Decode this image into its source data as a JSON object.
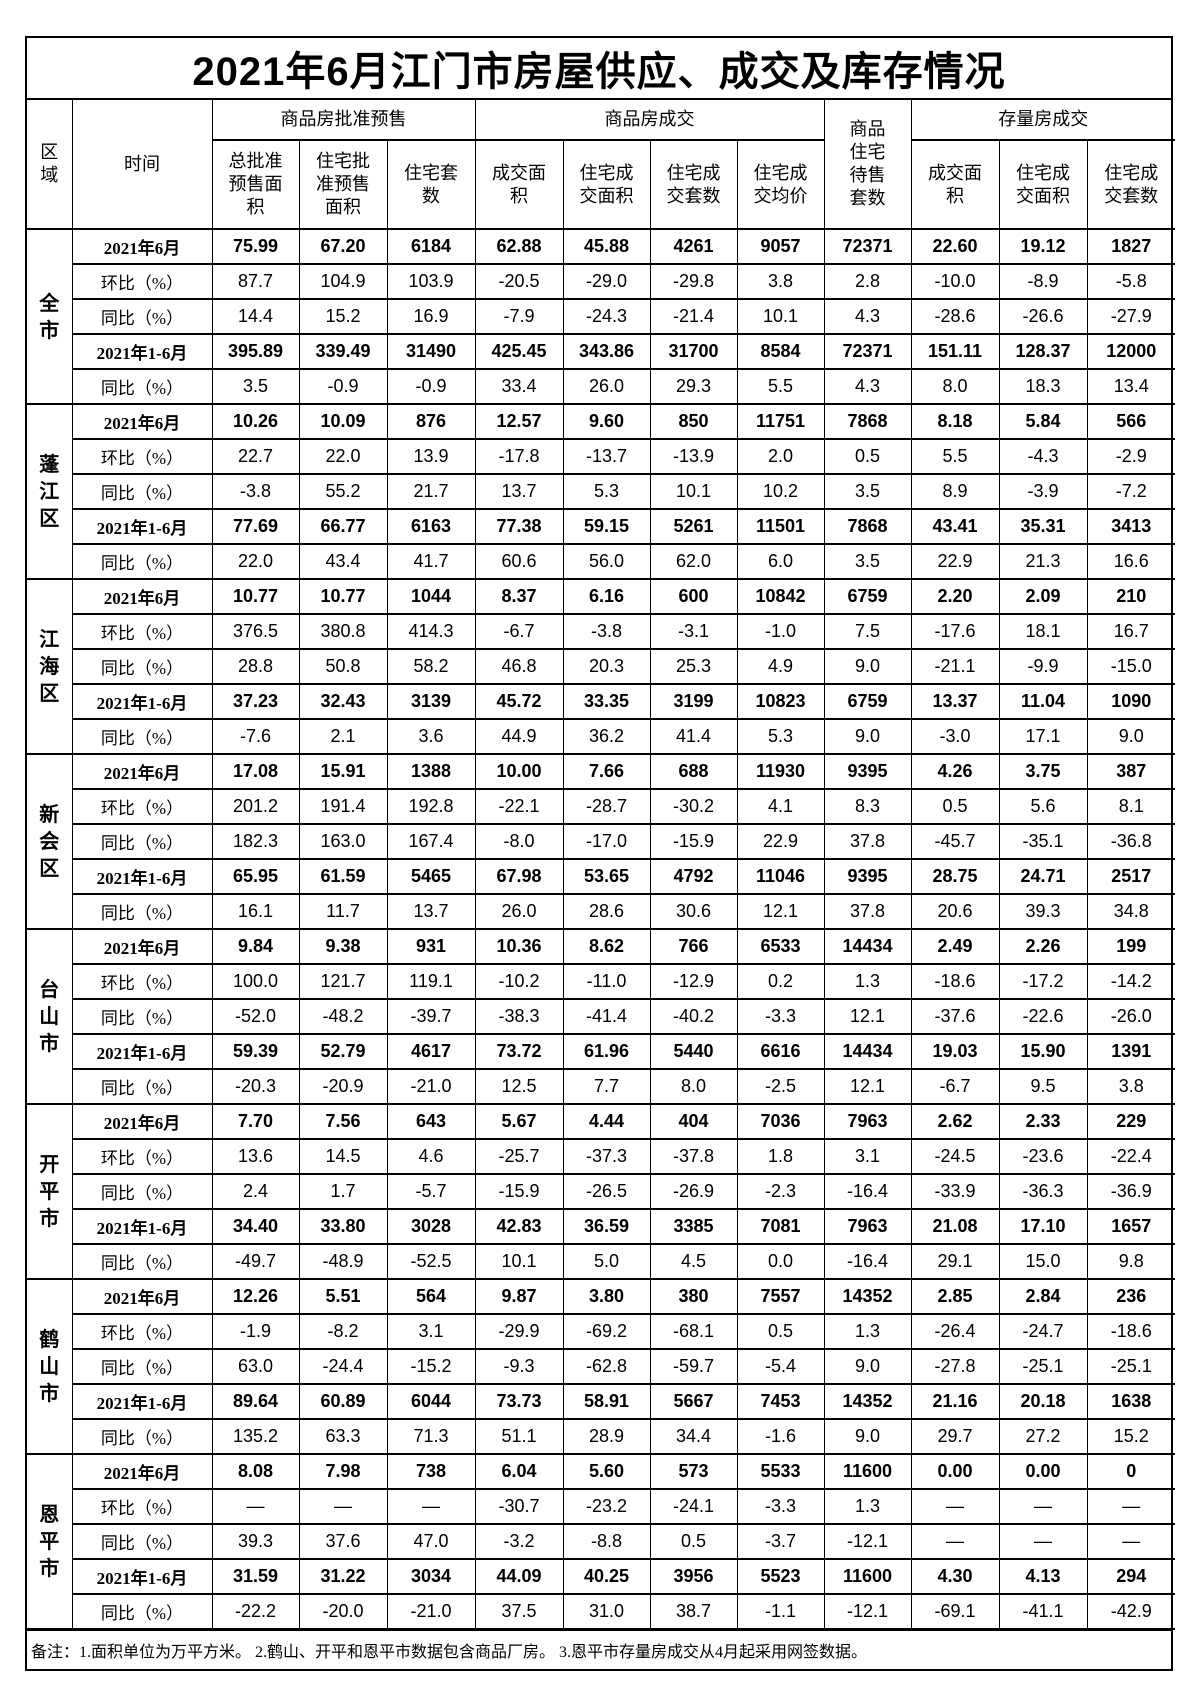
{
  "title": "2021年6月江门市房屋供应、成交及库存情况",
  "header": {
    "region": "区域",
    "time": "时间",
    "groups": [
      "商品房批准预售",
      "商品房成交",
      "商品住宅待售套数",
      "存量房成交"
    ],
    "columns": [
      "总批准预售面积",
      "住宅批准预售面积",
      "住宅套数",
      "成交面积",
      "住宅成交面积",
      "住宅成交套数",
      "住宅成交均价",
      "成交面积",
      "住宅成交面积",
      "住宅成交套数"
    ]
  },
  "row_labels": [
    "2021年6月",
    "环比（%）",
    "同比（%）",
    "2021年1-6月",
    "同比（%）"
  ],
  "regions": [
    {
      "name": "全市",
      "rows": [
        [
          "75.99",
          "67.20",
          "6184",
          "62.88",
          "45.88",
          "4261",
          "9057",
          "72371",
          "22.60",
          "19.12",
          "1827"
        ],
        [
          "87.7",
          "104.9",
          "103.9",
          "-20.5",
          "-29.0",
          "-29.8",
          "3.8",
          "2.8",
          "-10.0",
          "-8.9",
          "-5.8"
        ],
        [
          "14.4",
          "15.2",
          "16.9",
          "-7.9",
          "-24.3",
          "-21.4",
          "10.1",
          "4.3",
          "-28.6",
          "-26.6",
          "-27.9"
        ],
        [
          "395.89",
          "339.49",
          "31490",
          "425.45",
          "343.86",
          "31700",
          "8584",
          "72371",
          "151.11",
          "128.37",
          "12000"
        ],
        [
          "3.5",
          "-0.9",
          "-0.9",
          "33.4",
          "26.0",
          "29.3",
          "5.5",
          "4.3",
          "8.0",
          "18.3",
          "13.4"
        ]
      ]
    },
    {
      "name": "蓬江区",
      "rows": [
        [
          "10.26",
          "10.09",
          "876",
          "12.57",
          "9.60",
          "850",
          "11751",
          "7868",
          "8.18",
          "5.84",
          "566"
        ],
        [
          "22.7",
          "22.0",
          "13.9",
          "-17.8",
          "-13.7",
          "-13.9",
          "2.0",
          "0.5",
          "5.5",
          "-4.3",
          "-2.9"
        ],
        [
          "-3.8",
          "55.2",
          "21.7",
          "13.7",
          "5.3",
          "10.1",
          "10.2",
          "3.5",
          "8.9",
          "-3.9",
          "-7.2"
        ],
        [
          "77.69",
          "66.77",
          "6163",
          "77.38",
          "59.15",
          "5261",
          "11501",
          "7868",
          "43.41",
          "35.31",
          "3413"
        ],
        [
          "22.0",
          "43.4",
          "41.7",
          "60.6",
          "56.0",
          "62.0",
          "6.0",
          "3.5",
          "22.9",
          "21.3",
          "16.6"
        ]
      ]
    },
    {
      "name": "江海区",
      "rows": [
        [
          "10.77",
          "10.77",
          "1044",
          "8.37",
          "6.16",
          "600",
          "10842",
          "6759",
          "2.20",
          "2.09",
          "210"
        ],
        [
          "376.5",
          "380.8",
          "414.3",
          "-6.7",
          "-3.8",
          "-3.1",
          "-1.0",
          "7.5",
          "-17.6",
          "18.1",
          "16.7"
        ],
        [
          "28.8",
          "50.8",
          "58.2",
          "46.8",
          "20.3",
          "25.3",
          "4.9",
          "9.0",
          "-21.1",
          "-9.9",
          "-15.0"
        ],
        [
          "37.23",
          "32.43",
          "3139",
          "45.72",
          "33.35",
          "3199",
          "10823",
          "6759",
          "13.37",
          "11.04",
          "1090"
        ],
        [
          "-7.6",
          "2.1",
          "3.6",
          "44.9",
          "36.2",
          "41.4",
          "5.3",
          "9.0",
          "-3.0",
          "17.1",
          "9.0"
        ]
      ]
    },
    {
      "name": "新会区",
      "rows": [
        [
          "17.08",
          "15.91",
          "1388",
          "10.00",
          "7.66",
          "688",
          "11930",
          "9395",
          "4.26",
          "3.75",
          "387"
        ],
        [
          "201.2",
          "191.4",
          "192.8",
          "-22.1",
          "-28.7",
          "-30.2",
          "4.1",
          "8.3",
          "0.5",
          "5.6",
          "8.1"
        ],
        [
          "182.3",
          "163.0",
          "167.4",
          "-8.0",
          "-17.0",
          "-15.9",
          "22.9",
          "37.8",
          "-45.7",
          "-35.1",
          "-36.8"
        ],
        [
          "65.95",
          "61.59",
          "5465",
          "67.98",
          "53.65",
          "4792",
          "11046",
          "9395",
          "28.75",
          "24.71",
          "2517"
        ],
        [
          "16.1",
          "11.7",
          "13.7",
          "26.0",
          "28.6",
          "30.6",
          "12.1",
          "37.8",
          "20.6",
          "39.3",
          "34.8"
        ]
      ]
    },
    {
      "name": "台山市",
      "rows": [
        [
          "9.84",
          "9.38",
          "931",
          "10.36",
          "8.62",
          "766",
          "6533",
          "14434",
          "2.49",
          "2.26",
          "199"
        ],
        [
          "100.0",
          "121.7",
          "119.1",
          "-10.2",
          "-11.0",
          "-12.9",
          "0.2",
          "1.3",
          "-18.6",
          "-17.2",
          "-14.2"
        ],
        [
          "-52.0",
          "-48.2",
          "-39.7",
          "-38.3",
          "-41.4",
          "-40.2",
          "-3.3",
          "12.1",
          "-37.6",
          "-22.6",
          "-26.0"
        ],
        [
          "59.39",
          "52.79",
          "4617",
          "73.72",
          "61.96",
          "5440",
          "6616",
          "14434",
          "19.03",
          "15.90",
          "1391"
        ],
        [
          "-20.3",
          "-20.9",
          "-21.0",
          "12.5",
          "7.7",
          "8.0",
          "-2.5",
          "12.1",
          "-6.7",
          "9.5",
          "3.8"
        ]
      ]
    },
    {
      "name": "开平市",
      "rows": [
        [
          "7.70",
          "7.56",
          "643",
          "5.67",
          "4.44",
          "404",
          "7036",
          "7963",
          "2.62",
          "2.33",
          "229"
        ],
        [
          "13.6",
          "14.5",
          "4.6",
          "-25.7",
          "-37.3",
          "-37.8",
          "1.8",
          "3.1",
          "-24.5",
          "-23.6",
          "-22.4"
        ],
        [
          "2.4",
          "1.7",
          "-5.7",
          "-15.9",
          "-26.5",
          "-26.9",
          "-2.3",
          "-16.4",
          "-33.9",
          "-36.3",
          "-36.9"
        ],
        [
          "34.40",
          "33.80",
          "3028",
          "42.83",
          "36.59",
          "3385",
          "7081",
          "7963",
          "21.08",
          "17.10",
          "1657"
        ],
        [
          "-49.7",
          "-48.9",
          "-52.5",
          "10.1",
          "5.0",
          "4.5",
          "0.0",
          "-16.4",
          "29.1",
          "15.0",
          "9.8"
        ]
      ]
    },
    {
      "name": "鹤山市",
      "rows": [
        [
          "12.26",
          "5.51",
          "564",
          "9.87",
          "3.80",
          "380",
          "7557",
          "14352",
          "2.85",
          "2.84",
          "236"
        ],
        [
          "-1.9",
          "-8.2",
          "3.1",
          "-29.9",
          "-69.2",
          "-68.1",
          "0.5",
          "1.3",
          "-26.4",
          "-24.7",
          "-18.6"
        ],
        [
          "63.0",
          "-24.4",
          "-15.2",
          "-9.3",
          "-62.8",
          "-59.7",
          "-5.4",
          "9.0",
          "-27.8",
          "-25.1",
          "-25.1"
        ],
        [
          "89.64",
          "60.89",
          "6044",
          "73.73",
          "58.91",
          "5667",
          "7453",
          "14352",
          "21.16",
          "20.18",
          "1638"
        ],
        [
          "135.2",
          "63.3",
          "71.3",
          "51.1",
          "28.9",
          "34.4",
          "-1.6",
          "9.0",
          "29.7",
          "27.2",
          "15.2"
        ]
      ]
    },
    {
      "name": "恩平市",
      "rows": [
        [
          "8.08",
          "7.98",
          "738",
          "6.04",
          "5.60",
          "573",
          "5533",
          "11600",
          "0.00",
          "0.00",
          "0"
        ],
        [
          "—",
          "—",
          "—",
          "-30.7",
          "-23.2",
          "-24.1",
          "-3.3",
          "1.3",
          "—",
          "—",
          "—"
        ],
        [
          "39.3",
          "37.6",
          "47.0",
          "-3.2",
          "-8.8",
          "0.5",
          "-3.7",
          "-12.1",
          "—",
          "—",
          "—"
        ],
        [
          "31.59",
          "31.22",
          "3034",
          "44.09",
          "40.25",
          "3956",
          "5523",
          "11600",
          "4.30",
          "4.13",
          "294"
        ],
        [
          "-22.2",
          "-20.0",
          "-21.0",
          "37.5",
          "31.0",
          "38.7",
          "-1.1",
          "-12.1",
          "-69.1",
          "-41.1",
          "-42.9"
        ]
      ]
    }
  ],
  "footer": "备注：1.面积单位为万平方米。 2.鹤山、开平和恩平市数据包含商品厂房。  3.恩平市存量房成交从4月起采用网签数据。"
}
